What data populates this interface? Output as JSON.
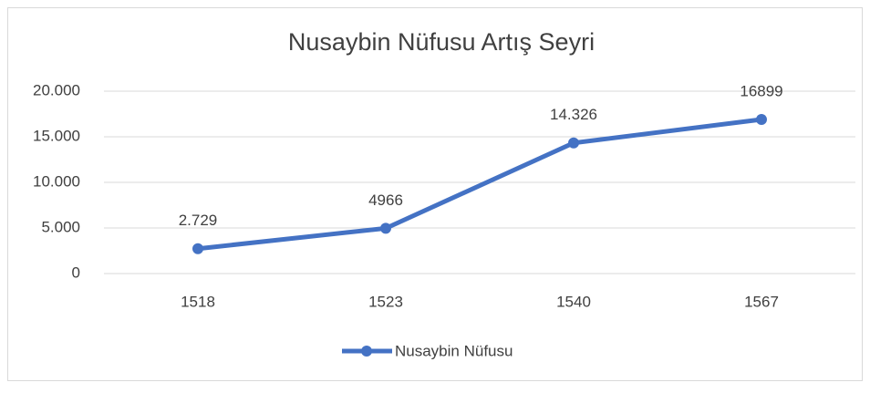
{
  "chart_data": {
    "type": "line",
    "title": "Nusaybin Nüfusu Artış Seyri",
    "categories": [
      "1518",
      "1523",
      "1540",
      "1567"
    ],
    "series": [
      {
        "name": "Nusaybin Nüfusu",
        "color": "#4472c4",
        "values": [
          2729,
          4966,
          14326,
          16899
        ],
        "value_labels": [
          "2.729",
          "4966",
          "14.326",
          "16899"
        ]
      }
    ],
    "ylim": [
      0,
      20000
    ],
    "yticks": [
      0,
      {
        "value": 5000,
        "label": "5.000"
      },
      {
        "value": 10000,
        "label": "10.000"
      },
      {
        "value": 15000,
        "label": "15.000"
      },
      {
        "value": 20000,
        "label": "20.000"
      }
    ],
    "grid": true,
    "legend": "bottom"
  }
}
